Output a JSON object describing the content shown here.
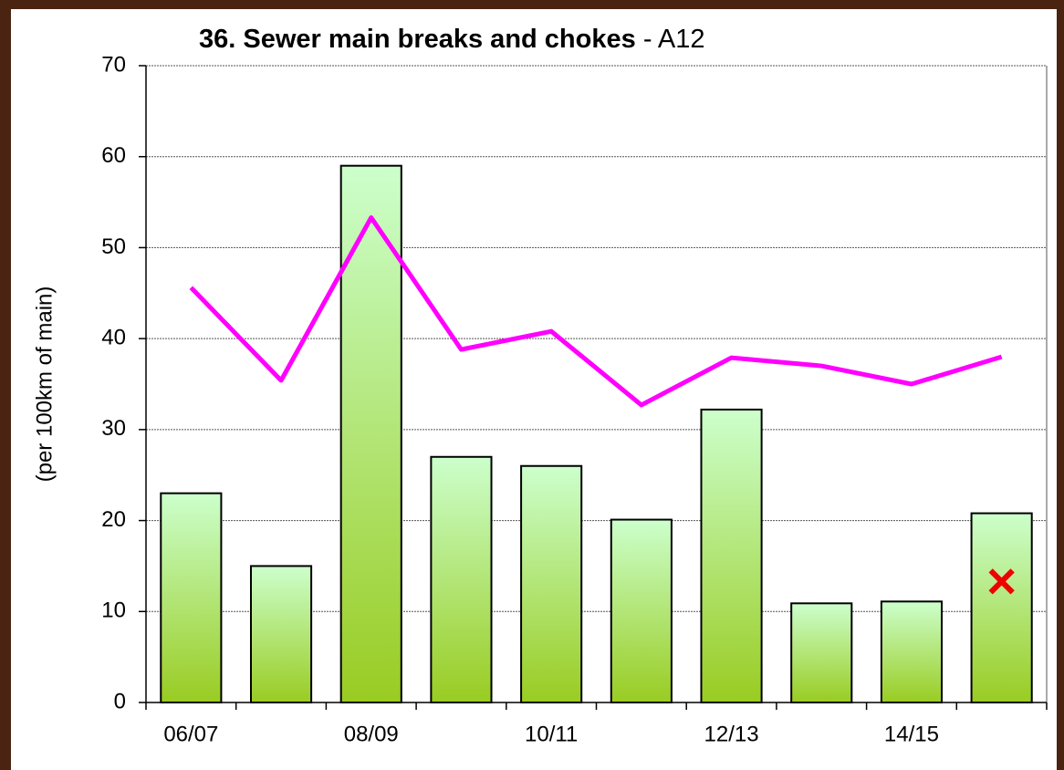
{
  "chart_data": {
    "type": "bar",
    "title": "36. Sewer main breaks and chokes",
    "title_suffix": "- A12",
    "y_label": "(per 100km of main)",
    "categories": [
      "06/07",
      null,
      "08/09",
      null,
      "10/11",
      null,
      "12/13",
      null,
      "14/15",
      null
    ],
    "series": [
      {
        "type": "bar",
        "color": "#99cc22",
        "values": [
          23,
          15,
          59,
          27,
          26,
          20.1,
          32.2,
          10.9,
          11.1,
          20.8
        ]
      },
      {
        "type": "line",
        "color": "#ff00ff",
        "values": [
          45.6,
          35.4,
          53.3,
          38.8,
          40.8,
          32.7,
          37.9,
          37.0,
          35.0,
          38.0
        ]
      },
      {
        "type": "marker",
        "marker": "x",
        "color": "#ee0000",
        "values": [
          null,
          null,
          null,
          null,
          null,
          null,
          null,
          null,
          null,
          13.3
        ]
      }
    ],
    "ylim": [
      0,
      70
    ],
    "yticks": [
      0,
      10,
      20,
      30,
      40,
      50,
      60,
      70
    ],
    "grid": true
  }
}
